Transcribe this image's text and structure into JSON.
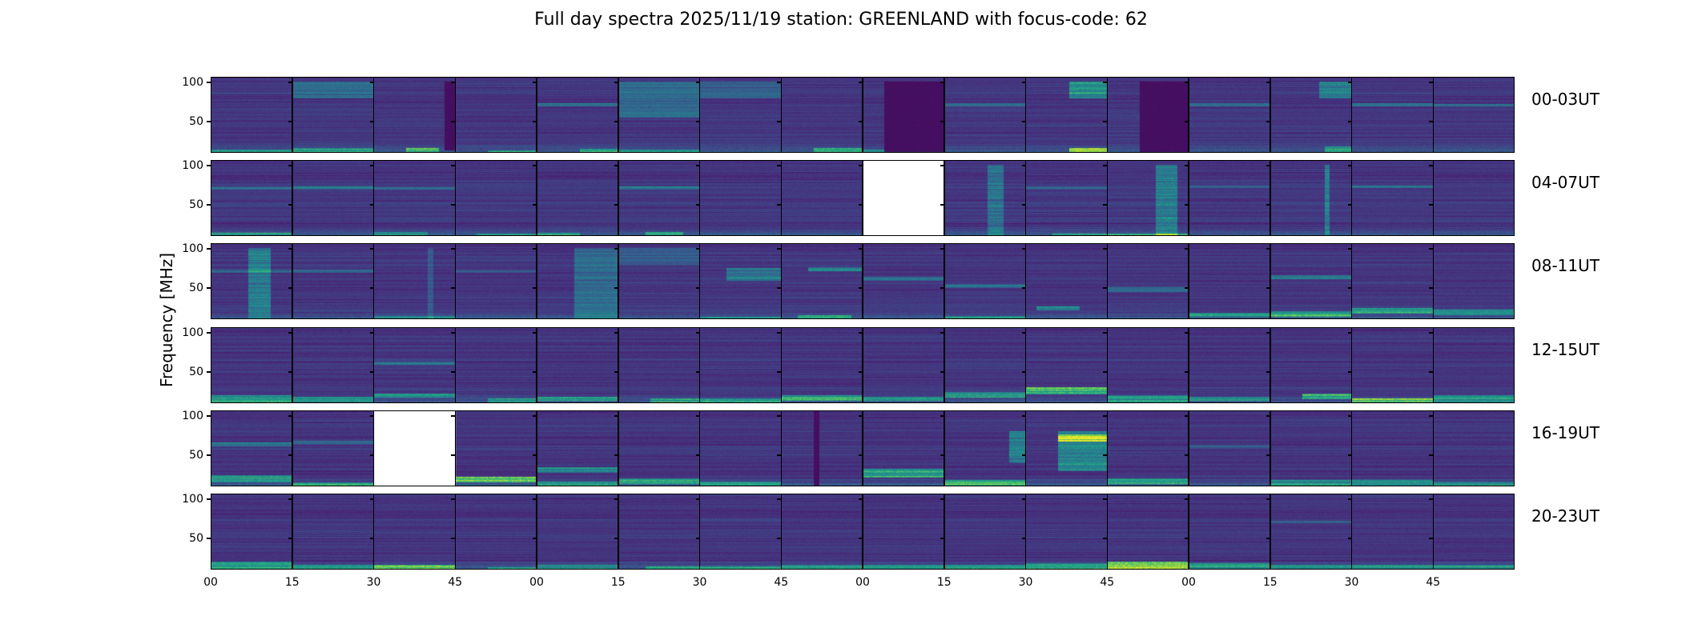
{
  "chart_data": {
    "type": "heatmap",
    "title": "Full day spectra 2025/11/19 station: GREENLAND with focus-code: 62",
    "ylabel": "Frequency [MHz]",
    "xlabel": "",
    "ylim": [
      10,
      107
    ],
    "yticks": [
      "100",
      "50"
    ],
    "ytick_values": [
      100,
      50
    ],
    "xtick_labels": [
      "00",
      "15",
      "30",
      "45",
      "00",
      "15",
      "30",
      "45",
      "00",
      "15",
      "30",
      "45",
      "00",
      "15",
      "30",
      "45"
    ],
    "colormap": "viridis",
    "colors": [
      "#440154",
      "#482878",
      "#3e4a89",
      "#31688e",
      "#26828e",
      "#1f9e89",
      "#35b779",
      "#6ece58",
      "#b5de2b",
      "#fde725"
    ],
    "cell_minutes": 15,
    "rows": [
      {
        "label": "00-03UT",
        "missing": [],
        "features": [
          {
            "c": 0,
            "t0": 0,
            "t1": 15,
            "f0": 10,
            "f1": 14,
            "v": 0.35
          },
          {
            "c": 1,
            "t0": 0,
            "t1": 15,
            "f0": 10,
            "f1": 16,
            "v": 0.35
          },
          {
            "c": 1,
            "t0": 0,
            "t1": 15,
            "f0": 80,
            "f1": 100,
            "v": 0.22
          },
          {
            "c": 2,
            "t0": 6,
            "t1": 12,
            "f0": 10,
            "f1": 16,
            "v": 0.55
          },
          {
            "c": 2,
            "t0": 13,
            "t1": 15,
            "f0": 14,
            "f1": 100,
            "v": -0.1
          },
          {
            "c": 3,
            "t0": 6,
            "t1": 15,
            "f0": 11,
            "f1": 13,
            "v": 0.35
          },
          {
            "c": 4,
            "t0": 0,
            "t1": 15,
            "f0": 70,
            "f1": 73,
            "v": 0.25
          },
          {
            "c": 4,
            "t0": 8,
            "t1": 15,
            "f0": 11,
            "f1": 15,
            "v": 0.4
          },
          {
            "c": 5,
            "t0": 0,
            "t1": 15,
            "f0": 55,
            "f1": 100,
            "v": 0.22
          },
          {
            "c": 5,
            "t0": 0,
            "t1": 15,
            "f0": 10,
            "f1": 14,
            "v": 0.3
          },
          {
            "c": 6,
            "t0": 0,
            "t1": 15,
            "f0": 80,
            "f1": 100,
            "v": 0.15
          },
          {
            "c": 7,
            "t0": 6,
            "t1": 15,
            "f0": 12,
            "f1": 16,
            "v": 0.4
          },
          {
            "c": 8,
            "t0": 0,
            "t1": 15,
            "f0": 10,
            "f1": 14,
            "v": 0.3
          },
          {
            "c": 8,
            "t0": 4,
            "t1": 15,
            "f0": 12,
            "f1": 100,
            "v": -0.1
          },
          {
            "c": 9,
            "t0": 0,
            "t1": 15,
            "f0": 70,
            "f1": 73,
            "v": 0.2
          },
          {
            "c": 10,
            "t0": 8,
            "t1": 15,
            "f0": 80,
            "f1": 100,
            "v": 0.4
          },
          {
            "c": 10,
            "t0": 8,
            "t1": 15,
            "f0": 10,
            "f1": 16,
            "v": 0.7
          },
          {
            "c": 11,
            "t0": 6,
            "t1": 15,
            "f0": 12,
            "f1": 100,
            "v": -0.1
          },
          {
            "c": 12,
            "t0": 0,
            "t1": 15,
            "f0": 70,
            "f1": 73,
            "v": 0.25
          },
          {
            "c": 13,
            "t0": 9,
            "t1": 15,
            "f0": 80,
            "f1": 100,
            "v": 0.3
          },
          {
            "c": 13,
            "t0": 10,
            "t1": 15,
            "f0": 12,
            "f1": 18,
            "v": 0.4
          },
          {
            "c": 14,
            "t0": 0,
            "t1": 15,
            "f0": 70,
            "f1": 73,
            "v": 0.3
          },
          {
            "c": 15,
            "t0": 0,
            "t1": 15,
            "f0": 70,
            "f1": 72,
            "v": 0.25
          }
        ]
      },
      {
        "label": "04-07UT",
        "missing": [
          8
        ],
        "features": [
          {
            "c": 0,
            "t0": 0,
            "t1": 15,
            "f0": 10,
            "f1": 14,
            "v": 0.35
          },
          {
            "c": 0,
            "t0": 0,
            "t1": 15,
            "f0": 70,
            "f1": 72,
            "v": 0.2
          },
          {
            "c": 1,
            "t0": 0,
            "t1": 15,
            "f0": 70,
            "f1": 73,
            "v": 0.25
          },
          {
            "c": 2,
            "t0": 0,
            "t1": 15,
            "f0": 70,
            "f1": 72,
            "v": 0.2
          },
          {
            "c": 2,
            "t0": 0,
            "t1": 10,
            "f0": 10,
            "f1": 15,
            "v": 0.3
          },
          {
            "c": 3,
            "t0": 4,
            "t1": 15,
            "f0": 11,
            "f1": 13,
            "v": 0.3
          },
          {
            "c": 4,
            "t0": 0,
            "t1": 8,
            "f0": 10,
            "f1": 14,
            "v": 0.35
          },
          {
            "c": 5,
            "t0": 0,
            "t1": 15,
            "f0": 70,
            "f1": 73,
            "v": 0.25
          },
          {
            "c": 5,
            "t0": 5,
            "t1": 12,
            "f0": 10,
            "f1": 15,
            "v": 0.4
          },
          {
            "c": 9,
            "t0": 8,
            "t1": 11,
            "f0": 10,
            "f1": 100,
            "v": 0.25
          },
          {
            "c": 10,
            "t0": 0,
            "t1": 15,
            "f0": 70,
            "f1": 73,
            "v": 0.2
          },
          {
            "c": 10,
            "t0": 5,
            "t1": 15,
            "f0": 10,
            "f1": 13,
            "v": 0.4
          },
          {
            "c": 11,
            "t0": 9,
            "t1": 13,
            "f0": 10,
            "f1": 100,
            "v": 0.3
          },
          {
            "c": 11,
            "t0": 0,
            "t1": 15,
            "f0": 10,
            "f1": 13,
            "v": 0.45
          },
          {
            "c": 12,
            "t0": 0,
            "t1": 15,
            "f0": 72,
            "f1": 74,
            "v": 0.2
          },
          {
            "c": 13,
            "t0": 10,
            "t1": 11,
            "f0": 10,
            "f1": 100,
            "v": 0.3
          },
          {
            "c": 14,
            "t0": 0,
            "t1": 15,
            "f0": 72,
            "f1": 74,
            "v": 0.25
          }
        ]
      },
      {
        "label": "08-11UT",
        "missing": [],
        "features": [
          {
            "c": 0,
            "t0": 7,
            "t1": 11,
            "f0": 10,
            "f1": 100,
            "v": 0.3
          },
          {
            "c": 0,
            "t0": 0,
            "t1": 15,
            "f0": 70,
            "f1": 73,
            "v": 0.2
          },
          {
            "c": 1,
            "t0": 0,
            "t1": 15,
            "f0": 70,
            "f1": 73,
            "v": 0.2
          },
          {
            "c": 2,
            "t0": 10,
            "t1": 11,
            "f0": 10,
            "f1": 100,
            "v": 0.15
          },
          {
            "c": 2,
            "t0": 0,
            "t1": 15,
            "f0": 10,
            "f1": 14,
            "v": 0.3
          },
          {
            "c": 3,
            "t0": 0,
            "t1": 15,
            "f0": 70,
            "f1": 73,
            "v": 0.18
          },
          {
            "c": 4,
            "t0": 7,
            "t1": 15,
            "f0": 10,
            "f1": 100,
            "v": 0.22
          },
          {
            "c": 5,
            "t0": 0,
            "t1": 15,
            "f0": 80,
            "f1": 100,
            "v": 0.15
          },
          {
            "c": 6,
            "t0": 5,
            "t1": 15,
            "f0": 60,
            "f1": 75,
            "v": 0.3
          },
          {
            "c": 6,
            "t0": 0,
            "t1": 15,
            "f0": 10,
            "f1": 13,
            "v": 0.3
          },
          {
            "c": 7,
            "t0": 5,
            "t1": 15,
            "f0": 72,
            "f1": 76,
            "v": 0.35
          },
          {
            "c": 7,
            "t0": 3,
            "t1": 13,
            "f0": 11,
            "f1": 15,
            "v": 0.45
          },
          {
            "c": 8,
            "t0": 0,
            "t1": 15,
            "f0": 60,
            "f1": 64,
            "v": 0.25
          },
          {
            "c": 9,
            "t0": 0,
            "t1": 15,
            "f0": 50,
            "f1": 54,
            "v": 0.25
          },
          {
            "c": 9,
            "t0": 0,
            "t1": 15,
            "f0": 10,
            "f1": 14,
            "v": 0.3
          },
          {
            "c": 10,
            "t0": 2,
            "t1": 10,
            "f0": 22,
            "f1": 26,
            "v": 0.35
          },
          {
            "c": 11,
            "t0": 0,
            "t1": 15,
            "f0": 45,
            "f1": 50,
            "v": 0.22
          },
          {
            "c": 12,
            "t0": 0,
            "t1": 15,
            "f0": 14,
            "f1": 18,
            "v": 0.35
          },
          {
            "c": 13,
            "t0": 0,
            "t1": 15,
            "f0": 62,
            "f1": 66,
            "v": 0.35
          },
          {
            "c": 13,
            "t0": 0,
            "t1": 15,
            "f0": 14,
            "f1": 20,
            "v": 0.45
          },
          {
            "c": 14,
            "t0": 0,
            "t1": 15,
            "f0": 18,
            "f1": 24,
            "v": 0.45
          },
          {
            "c": 15,
            "t0": 0,
            "t1": 15,
            "f0": 16,
            "f1": 22,
            "v": 0.35
          }
        ]
      },
      {
        "label": "12-15UT",
        "missing": [],
        "features": [
          {
            "c": 0,
            "t0": 0,
            "t1": 15,
            "f0": 12,
            "f1": 20,
            "v": 0.4
          },
          {
            "c": 1,
            "t0": 0,
            "t1": 15,
            "f0": 12,
            "f1": 18,
            "v": 0.3
          },
          {
            "c": 2,
            "t0": 0,
            "t1": 15,
            "f0": 60,
            "f1": 63,
            "v": 0.25
          },
          {
            "c": 2,
            "t0": 0,
            "t1": 15,
            "f0": 18,
            "f1": 22,
            "v": 0.35
          },
          {
            "c": 3,
            "t0": 6,
            "t1": 15,
            "f0": 12,
            "f1": 16,
            "v": 0.35
          },
          {
            "c": 4,
            "t0": 0,
            "t1": 15,
            "f0": 14,
            "f1": 18,
            "v": 0.35
          },
          {
            "c": 5,
            "t0": 6,
            "t1": 15,
            "f0": 12,
            "f1": 16,
            "v": 0.4
          },
          {
            "c": 6,
            "t0": 0,
            "t1": 15,
            "f0": 12,
            "f1": 16,
            "v": 0.35
          },
          {
            "c": 7,
            "t0": 0,
            "t1": 15,
            "f0": 14,
            "f1": 20,
            "v": 0.5
          },
          {
            "c": 8,
            "t0": 0,
            "t1": 15,
            "f0": 14,
            "f1": 18,
            "v": 0.35
          },
          {
            "c": 9,
            "t0": 0,
            "t1": 15,
            "f0": 18,
            "f1": 24,
            "v": 0.4
          },
          {
            "c": 10,
            "t0": 0,
            "t1": 15,
            "f0": 22,
            "f1": 30,
            "v": 0.55
          },
          {
            "c": 11,
            "t0": 0,
            "t1": 15,
            "f0": 12,
            "f1": 20,
            "v": 0.35
          },
          {
            "c": 12,
            "t0": 0,
            "t1": 15,
            "f0": 14,
            "f1": 18,
            "v": 0.3
          },
          {
            "c": 13,
            "t0": 6,
            "t1": 15,
            "f0": 16,
            "f1": 22,
            "v": 0.55
          },
          {
            "c": 14,
            "t0": 0,
            "t1": 15,
            "f0": 10,
            "f1": 16,
            "v": 0.6
          },
          {
            "c": 15,
            "t0": 0,
            "t1": 15,
            "f0": 12,
            "f1": 20,
            "v": 0.35
          }
        ]
      },
      {
        "label": "16-19UT",
        "missing": [
          2
        ],
        "features": [
          {
            "c": 0,
            "t0": 0,
            "t1": 15,
            "f0": 62,
            "f1": 66,
            "v": 0.3
          },
          {
            "c": 0,
            "t0": 0,
            "t1": 15,
            "f0": 16,
            "f1": 24,
            "v": 0.45
          },
          {
            "c": 1,
            "t0": 0,
            "t1": 15,
            "f0": 64,
            "f1": 68,
            "v": 0.2
          },
          {
            "c": 1,
            "t0": 0,
            "t1": 15,
            "f0": 10,
            "f1": 15,
            "v": 0.35
          },
          {
            "c": 3,
            "t0": 0,
            "t1": 15,
            "f0": 16,
            "f1": 22,
            "v": 0.6
          },
          {
            "c": 4,
            "t0": 0,
            "t1": 15,
            "f0": 28,
            "f1": 34,
            "v": 0.35
          },
          {
            "c": 4,
            "t0": 0,
            "t1": 15,
            "f0": 10,
            "f1": 16,
            "v": 0.35
          },
          {
            "c": 5,
            "t0": 0,
            "t1": 15,
            "f0": 14,
            "f1": 20,
            "v": 0.45
          },
          {
            "c": 6,
            "t0": 0,
            "t1": 15,
            "f0": 12,
            "f1": 16,
            "v": 0.35
          },
          {
            "c": 7,
            "t0": 6,
            "t1": 7,
            "f0": 10,
            "f1": 107,
            "v": -0.1
          },
          {
            "c": 8,
            "t0": 0,
            "t1": 15,
            "f0": 22,
            "f1": 32,
            "v": 0.5
          },
          {
            "c": 9,
            "t0": 12,
            "t1": 15,
            "f0": 40,
            "f1": 80,
            "v": 0.3
          },
          {
            "c": 9,
            "t0": 0,
            "t1": 15,
            "f0": 10,
            "f1": 18,
            "v": 0.45
          },
          {
            "c": 10,
            "t0": 6,
            "t1": 15,
            "f0": 30,
            "f1": 80,
            "v": 0.35
          },
          {
            "c": 10,
            "t0": 6,
            "t1": 15,
            "f0": 68,
            "f1": 76,
            "v": 0.55
          },
          {
            "c": 11,
            "t0": 0,
            "t1": 15,
            "f0": 14,
            "f1": 20,
            "v": 0.4
          },
          {
            "c": 12,
            "t0": 0,
            "t1": 15,
            "f0": 60,
            "f1": 63,
            "v": 0.15
          },
          {
            "c": 13,
            "t0": 0,
            "t1": 15,
            "f0": 12,
            "f1": 18,
            "v": 0.3
          },
          {
            "c": 14,
            "t0": 0,
            "t1": 15,
            "f0": 12,
            "f1": 18,
            "v": 0.35
          },
          {
            "c": 15,
            "t0": 0,
            "t1": 15,
            "f0": 12,
            "f1": 16,
            "v": 0.3
          }
        ]
      },
      {
        "label": "20-23UT",
        "missing": [],
        "features": [
          {
            "c": 0,
            "t0": 0,
            "t1": 15,
            "f0": 12,
            "f1": 20,
            "v": 0.4
          },
          {
            "c": 1,
            "t0": 0,
            "t1": 15,
            "f0": 12,
            "f1": 16,
            "v": 0.3
          },
          {
            "c": 2,
            "t0": 0,
            "t1": 15,
            "f0": 10,
            "f1": 16,
            "v": 0.5
          },
          {
            "c": 3,
            "t0": 6,
            "t1": 15,
            "f0": 10,
            "f1": 13,
            "v": 0.4
          },
          {
            "c": 4,
            "t0": 0,
            "t1": 15,
            "f0": 12,
            "f1": 16,
            "v": 0.3
          },
          {
            "c": 5,
            "t0": 5,
            "t1": 15,
            "f0": 10,
            "f1": 14,
            "v": 0.5
          },
          {
            "c": 6,
            "t0": 0,
            "t1": 15,
            "f0": 10,
            "f1": 14,
            "v": 0.4
          },
          {
            "c": 7,
            "t0": 0,
            "t1": 15,
            "f0": 12,
            "f1": 16,
            "v": 0.3
          },
          {
            "c": 8,
            "t0": 0,
            "t1": 15,
            "f0": 12,
            "f1": 16,
            "v": 0.3
          },
          {
            "c": 9,
            "t0": 0,
            "t1": 15,
            "f0": 12,
            "f1": 16,
            "v": 0.3
          },
          {
            "c": 10,
            "t0": 0,
            "t1": 15,
            "f0": 12,
            "f1": 18,
            "v": 0.35
          },
          {
            "c": 11,
            "t0": 0,
            "t1": 15,
            "f0": 10,
            "f1": 20,
            "v": 0.65
          },
          {
            "c": 12,
            "t0": 0,
            "t1": 15,
            "f0": 12,
            "f1": 18,
            "v": 0.35
          },
          {
            "c": 13,
            "t0": 0,
            "t1": 15,
            "f0": 70,
            "f1": 72,
            "v": 0.2
          },
          {
            "c": 13,
            "t0": 0,
            "t1": 15,
            "f0": 12,
            "f1": 16,
            "v": 0.3
          },
          {
            "c": 14,
            "t0": 0,
            "t1": 15,
            "f0": 12,
            "f1": 16,
            "v": 0.3
          },
          {
            "c": 15,
            "t0": 0,
            "t1": 15,
            "f0": 12,
            "f1": 16,
            "v": 0.3
          }
        ]
      }
    ]
  }
}
